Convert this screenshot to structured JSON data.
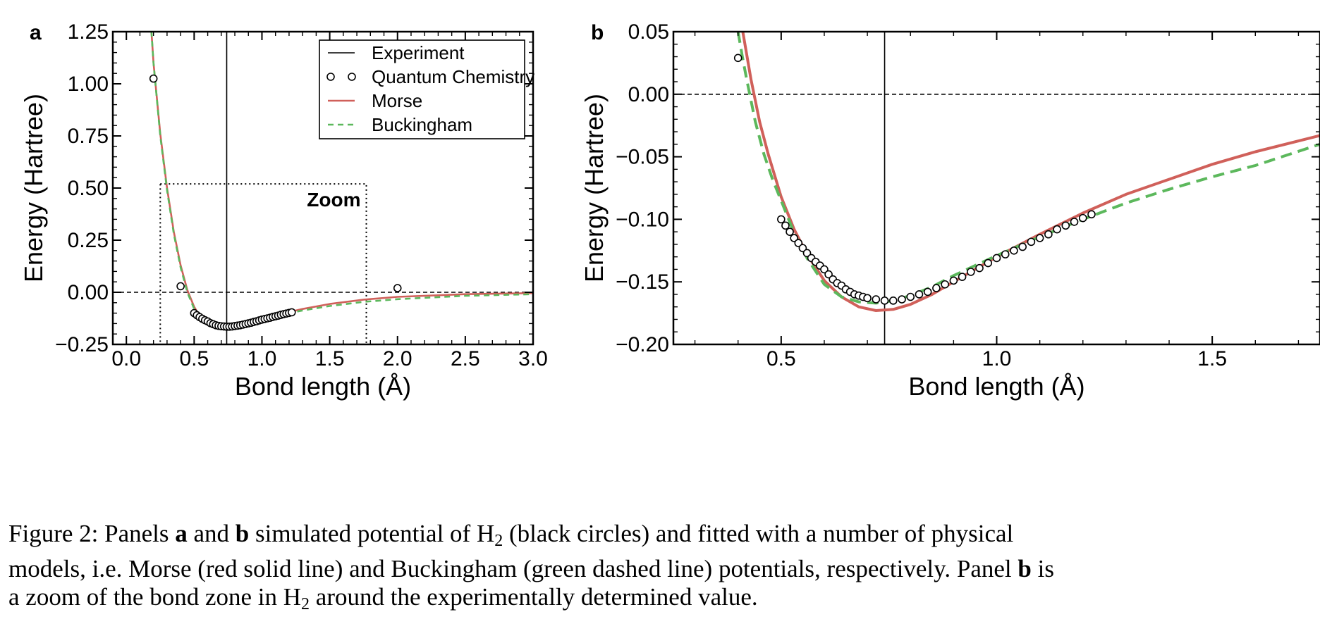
{
  "chart_data": [
    {
      "panel": "a",
      "type": "line",
      "xlabel": "Bond length (Å)",
      "ylabel": "Energy (Hartree)",
      "xlim": [
        -0.1,
        3.0
      ],
      "ylim": [
        -0.25,
        1.25
      ],
      "xticks": [
        "0.0",
        "0.5",
        "1.0",
        "1.5",
        "2.0",
        "2.5",
        "3.0"
      ],
      "yticks": [
        "−0.25",
        "0.00",
        "0.25",
        "0.50",
        "0.75",
        "1.00",
        "1.25"
      ],
      "legend": {
        "position": "top-right",
        "entries": [
          "Experiment",
          "Quantum Chemistry",
          "Morse",
          "Buckingham"
        ]
      },
      "experiment_x": 0.74,
      "zero_line": 0.0,
      "zoom_box": {
        "label": "Zoom",
        "x": [
          0.25,
          1.77
        ],
        "y": [
          -0.25,
          0.52
        ]
      },
      "quantum_chemistry": {
        "x": [
          0.2,
          0.4,
          0.5,
          0.52,
          0.54,
          0.56,
          0.58,
          0.6,
          0.62,
          0.64,
          0.66,
          0.68,
          0.7,
          0.72,
          0.74,
          0.76,
          0.78,
          0.8,
          0.82,
          0.84,
          0.86,
          0.88,
          0.9,
          0.92,
          0.94,
          0.96,
          0.98,
          1.0,
          1.02,
          1.04,
          1.06,
          1.08,
          1.1,
          1.12,
          1.14,
          1.16,
          1.18,
          1.2,
          1.22,
          2.0
        ],
        "y": [
          1.025,
          0.029,
          -0.1,
          -0.11,
          -0.119,
          -0.127,
          -0.134,
          -0.14,
          -0.148,
          -0.153,
          -0.158,
          -0.161,
          -0.163,
          -0.164,
          -0.165,
          -0.165,
          -0.164,
          -0.162,
          -0.16,
          -0.158,
          -0.155,
          -0.152,
          -0.149,
          -0.146,
          -0.142,
          -0.139,
          -0.135,
          -0.131,
          -0.128,
          -0.125,
          -0.122,
          -0.118,
          -0.115,
          -0.112,
          -0.108,
          -0.105,
          -0.102,
          -0.099,
          -0.096,
          0.02
        ]
      },
      "series": [
        {
          "name": "Morse",
          "color": "#d0605a",
          "style": "solid",
          "x": [
            0.18,
            0.2,
            0.25,
            0.3,
            0.35,
            0.4,
            0.45,
            0.5,
            0.55,
            0.6,
            0.65,
            0.7,
            0.75,
            0.8,
            0.9,
            1.0,
            1.1,
            1.2,
            1.3,
            1.5,
            1.75,
            2.0,
            2.5,
            3.0
          ],
          "y": [
            1.3,
            1.1,
            0.76,
            0.5,
            0.29,
            0.13,
            0.01,
            -0.07,
            -0.125,
            -0.155,
            -0.168,
            -0.172,
            -0.17,
            -0.165,
            -0.15,
            -0.13,
            -0.112,
            -0.095,
            -0.08,
            -0.056,
            -0.035,
            -0.022,
            -0.009,
            -0.004
          ]
        },
        {
          "name": "Buckingham",
          "color": "#5cb85c",
          "style": "dashed",
          "x": [
            0.18,
            0.2,
            0.25,
            0.3,
            0.35,
            0.4,
            0.45,
            0.5,
            0.55,
            0.6,
            0.65,
            0.7,
            0.75,
            0.8,
            0.9,
            1.0,
            1.1,
            1.2,
            1.3,
            1.5,
            1.75,
            2.0,
            2.5,
            3.0
          ],
          "y": [
            1.3,
            1.1,
            0.75,
            0.49,
            0.28,
            0.12,
            0.0,
            -0.08,
            -0.13,
            -0.155,
            -0.165,
            -0.167,
            -0.165,
            -0.16,
            -0.145,
            -0.129,
            -0.114,
            -0.1,
            -0.087,
            -0.066,
            -0.046,
            -0.033,
            -0.017,
            -0.009
          ]
        }
      ]
    },
    {
      "panel": "b",
      "type": "line",
      "xlabel": "Bond length (Å)",
      "ylabel": "Energy (Hartree)",
      "xlim": [
        0.25,
        1.75
      ],
      "ylim": [
        -0.2,
        0.05
      ],
      "xticks": [
        "0.5",
        "1.0",
        "1.5"
      ],
      "yticks": [
        "−0.20",
        "−0.15",
        "−0.10",
        "−0.05",
        "0.00",
        "0.05"
      ],
      "experiment_x": 0.74,
      "zero_line": 0.0,
      "quantum_chemistry": {
        "x": [
          0.4,
          0.5,
          0.51,
          0.52,
          0.53,
          0.54,
          0.55,
          0.56,
          0.57,
          0.58,
          0.59,
          0.6,
          0.61,
          0.62,
          0.63,
          0.64,
          0.65,
          0.66,
          0.67,
          0.68,
          0.69,
          0.7,
          0.72,
          0.74,
          0.76,
          0.78,
          0.8,
          0.82,
          0.84,
          0.86,
          0.88,
          0.9,
          0.92,
          0.94,
          0.96,
          0.98,
          1.0,
          1.02,
          1.04,
          1.06,
          1.08,
          1.1,
          1.12,
          1.14,
          1.16,
          1.18,
          1.2,
          1.22
        ],
        "y": [
          0.029,
          -0.1,
          -0.105,
          -0.11,
          -0.115,
          -0.119,
          -0.123,
          -0.127,
          -0.131,
          -0.134,
          -0.137,
          -0.14,
          -0.144,
          -0.148,
          -0.151,
          -0.153,
          -0.156,
          -0.158,
          -0.16,
          -0.161,
          -0.162,
          -0.163,
          -0.164,
          -0.165,
          -0.165,
          -0.164,
          -0.162,
          -0.16,
          -0.158,
          -0.155,
          -0.152,
          -0.149,
          -0.146,
          -0.142,
          -0.139,
          -0.135,
          -0.131,
          -0.128,
          -0.125,
          -0.122,
          -0.118,
          -0.115,
          -0.112,
          -0.108,
          -0.105,
          -0.102,
          -0.099,
          -0.096
        ]
      },
      "series": [
        {
          "name": "Morse",
          "color": "#d0605a",
          "style": "solid",
          "x": [
            0.41,
            0.42,
            0.43,
            0.45,
            0.47,
            0.5,
            0.53,
            0.56,
            0.6,
            0.64,
            0.68,
            0.72,
            0.76,
            0.8,
            0.85,
            0.9,
            0.95,
            1.0,
            1.1,
            1.2,
            1.3,
            1.4,
            1.5,
            1.6,
            1.75
          ],
          "y": [
            0.052,
            0.032,
            0.012,
            -0.022,
            -0.048,
            -0.082,
            -0.108,
            -0.128,
            -0.149,
            -0.162,
            -0.17,
            -0.173,
            -0.172,
            -0.168,
            -0.16,
            -0.15,
            -0.14,
            -0.13,
            -0.112,
            -0.095,
            -0.08,
            -0.068,
            -0.056,
            -0.046,
            -0.033
          ]
        },
        {
          "name": "Buckingham",
          "color": "#5cb85c",
          "style": "dashed",
          "x": [
            0.4,
            0.41,
            0.42,
            0.44,
            0.46,
            0.48,
            0.5,
            0.53,
            0.56,
            0.6,
            0.64,
            0.68,
            0.72,
            0.76,
            0.8,
            0.85,
            0.9,
            0.95,
            1.0,
            1.1,
            1.2,
            1.3,
            1.4,
            1.5,
            1.6,
            1.75
          ],
          "y": [
            0.05,
            0.03,
            0.012,
            -0.022,
            -0.048,
            -0.068,
            -0.085,
            -0.111,
            -0.131,
            -0.152,
            -0.162,
            -0.166,
            -0.167,
            -0.165,
            -0.161,
            -0.154,
            -0.145,
            -0.137,
            -0.129,
            -0.114,
            -0.1,
            -0.087,
            -0.076,
            -0.066,
            -0.057,
            -0.04
          ]
        }
      ]
    }
  ],
  "caption": {
    "line1": [
      "Figure 2:   Panels ",
      "a",
      " and ",
      "b",
      " simulated potential of H",
      "2",
      " (black circles) and fitted with a number of physical"
    ],
    "line2": [
      "models, i.e.  Morse (red solid line) and Buckingham (green dashed line) potentials, respectively.  Panel ",
      "b",
      " is"
    ],
    "line3": [
      "a zoom of the bond zone in H",
      "2",
      " around the experimentally determined value."
    ]
  }
}
